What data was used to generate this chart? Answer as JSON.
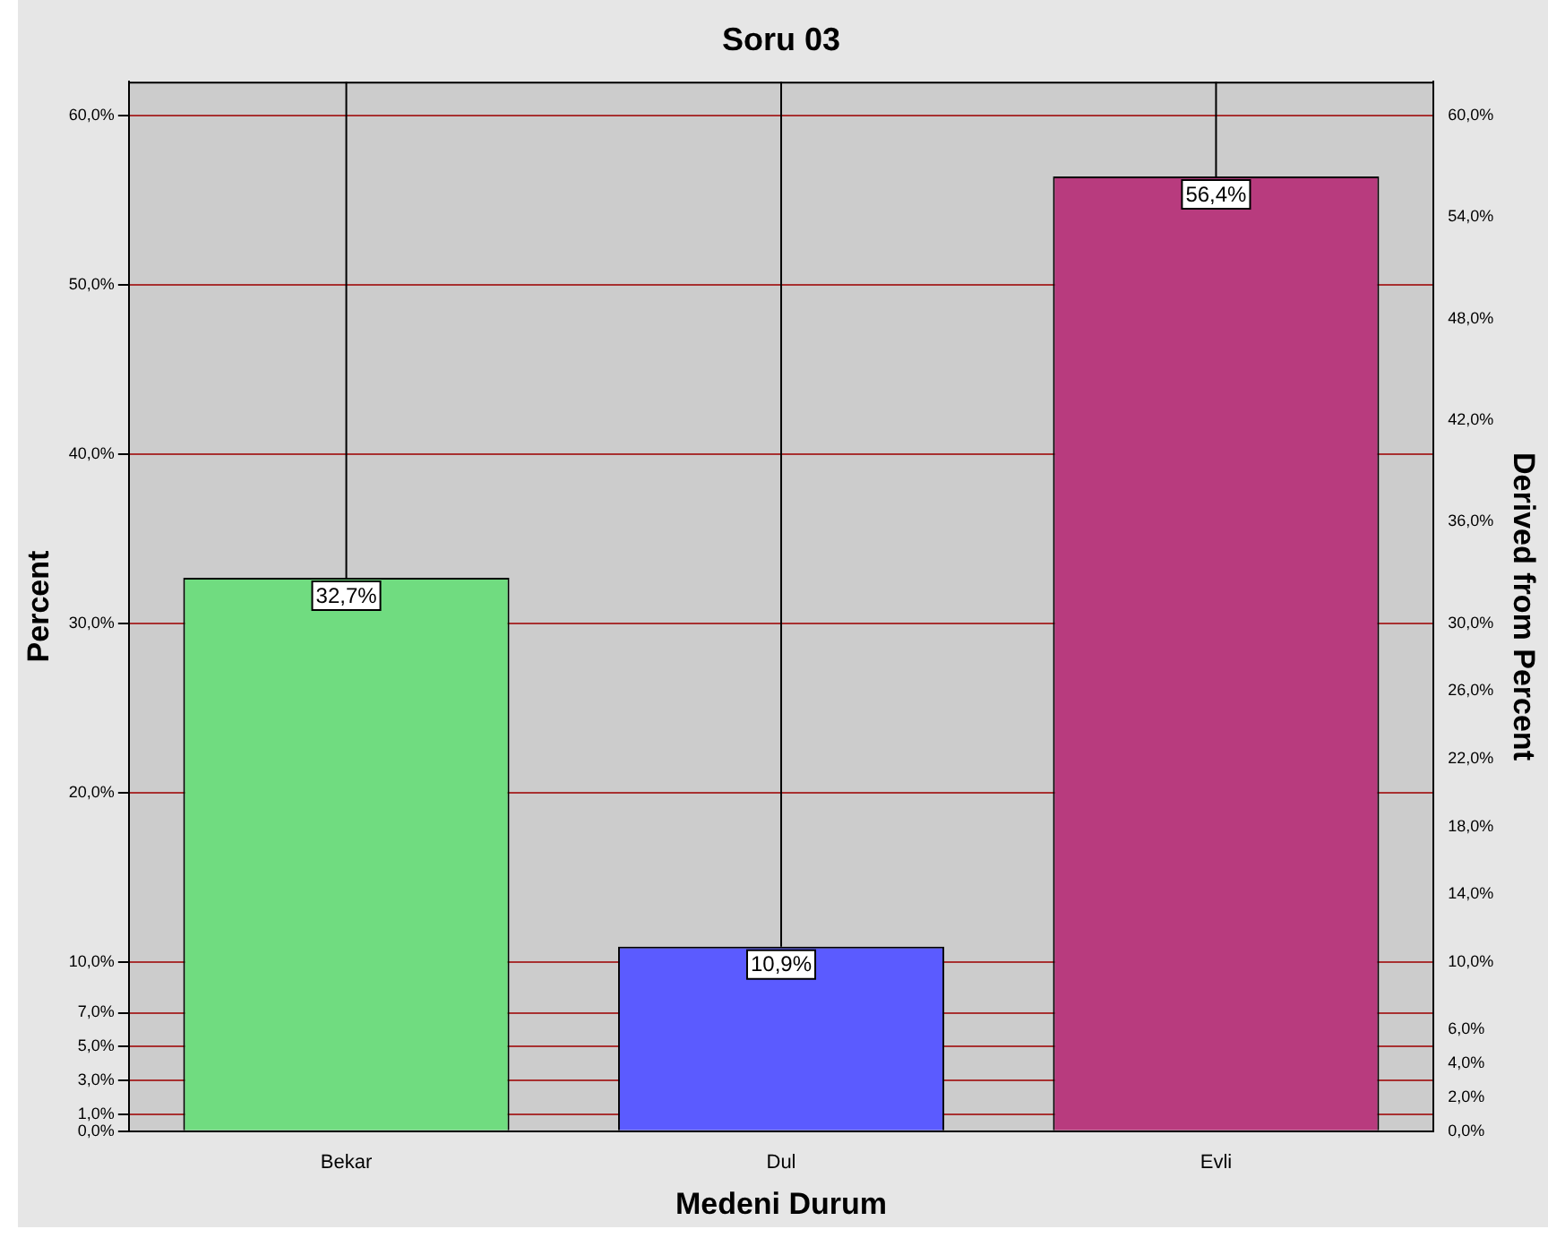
{
  "chart_data": {
    "type": "bar",
    "title": "Soru 03",
    "xlabel": "Medeni Durum",
    "ylabel": "Percent",
    "y2label": "Derived from Percent",
    "categories": [
      "Bekar",
      "Dul",
      "Evli"
    ],
    "values": [
      32.7,
      10.9,
      56.4
    ],
    "colors": [
      "#70dc80",
      "#5b5bff",
      "#b83b7e"
    ],
    "value_labels": [
      "32,7%",
      "10,9%",
      "56,4%"
    ],
    "errors": [
      [
        32.7,
        62
      ],
      [
        10.9,
        62
      ],
      [
        56.4,
        62
      ]
    ],
    "ylim": [
      0,
      62
    ],
    "yticks": [
      {
        "value": 0,
        "label": "0,0%"
      },
      {
        "value": 1,
        "label": "1,0%"
      },
      {
        "value": 3,
        "label": "3,0%"
      },
      {
        "value": 5,
        "label": "5,0%"
      },
      {
        "value": 7,
        "label": "7,0%"
      },
      {
        "value": 10,
        "label": "10,0%"
      },
      {
        "value": 20,
        "label": "20,0%"
      },
      {
        "value": 30,
        "label": "30,0%"
      },
      {
        "value": 40,
        "label": "40,0%"
      },
      {
        "value": 50,
        "label": "50,0%"
      },
      {
        "value": 60,
        "label": "60,0%"
      }
    ],
    "y2lim": [
      0,
      62
    ],
    "y2ticks": [
      {
        "value": 0,
        "label": "0,0%"
      },
      {
        "value": 2,
        "label": "2,0%"
      },
      {
        "value": 4,
        "label": "4,0%"
      },
      {
        "value": 6,
        "label": "6,0%"
      },
      {
        "value": 10,
        "label": "10,0%"
      },
      {
        "value": 14,
        "label": "14,0%"
      },
      {
        "value": 18,
        "label": "18,0%"
      },
      {
        "value": 22,
        "label": "22,0%"
      },
      {
        "value": 26,
        "label": "26,0%"
      },
      {
        "value": 30,
        "label": "30,0%"
      },
      {
        "value": 36,
        "label": "36,0%"
      },
      {
        "value": 42,
        "label": "42,0%"
      },
      {
        "value": 48,
        "label": "48,0%"
      },
      {
        "value": 54,
        "label": "54,0%"
      },
      {
        "value": 60,
        "label": "60,0%"
      }
    ],
    "grid": "y"
  }
}
